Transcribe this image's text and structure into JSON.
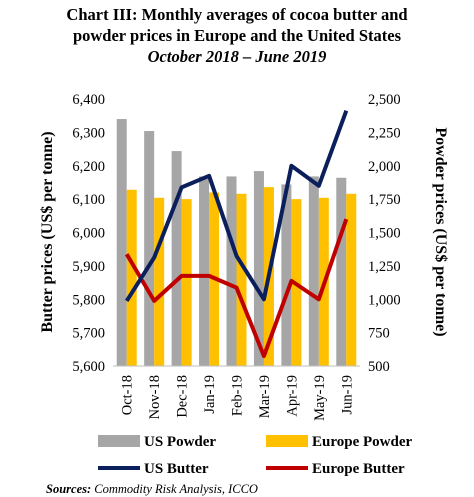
{
  "title_lines": [
    "Chart III: Monthly averages of cocoa butter and",
    "powder prices in Europe and the United States",
    "October 2018 – June 2019"
  ],
  "source_label": "Sources:",
  "source_text": "Commodity Risk Analysis, ICCO",
  "chart_data": {
    "type": "bar",
    "title": "Chart III: Monthly averages of cocoa butter and powder prices in Europe and the United States October 2018 – June 2019",
    "categories": [
      "Oct-18",
      "Nov-18",
      "Dec-18",
      "Jan-19",
      "Feb-19",
      "Mar-19",
      "Apr-19",
      "May-19",
      "Jun-19"
    ],
    "ylabel_left": "Butter prices (US$ per tonne)",
    "ylabel_right": "Powder prices (US$ per tonne)",
    "ylim_left": [
      5600,
      6400
    ],
    "ylim_right": [
      500,
      2500
    ],
    "yticks_left": [
      "5,600",
      "5,700",
      "5,800",
      "5,900",
      "6,000",
      "6,100",
      "6,200",
      "6,300",
      "6,400"
    ],
    "yticks_right": [
      "500",
      "750",
      "1,000",
      "1,250",
      "1,500",
      "1,750",
      "2,000",
      "2,250",
      "2,500"
    ],
    "series": [
      {
        "name": "US Powder",
        "type": "bar",
        "axis": "right",
        "color": "#a6a6a6",
        "values": [
          2350,
          2260,
          2110,
          1920,
          1920,
          1960,
          1860,
          1920,
          1910
        ]
      },
      {
        "name": "Europe Powder",
        "type": "bar",
        "axis": "right",
        "color": "#ffc000",
        "values": [
          1820,
          1760,
          1750,
          1800,
          1790,
          1840,
          1750,
          1760,
          1790
        ]
      },
      {
        "name": "US Butter",
        "type": "line",
        "axis": "left",
        "color": "#0b1f5c",
        "values": [
          5795,
          5925,
          6135,
          6170,
          5930,
          5800,
          6200,
          6140,
          6365
        ]
      },
      {
        "name": "Europe Butter",
        "type": "line",
        "axis": "left",
        "color": "#c00000",
        "values": [
          5935,
          5795,
          5870,
          5870,
          5835,
          5630,
          5855,
          5800,
          6040
        ]
      }
    ],
    "legend_position": "bottom",
    "grid": false
  }
}
